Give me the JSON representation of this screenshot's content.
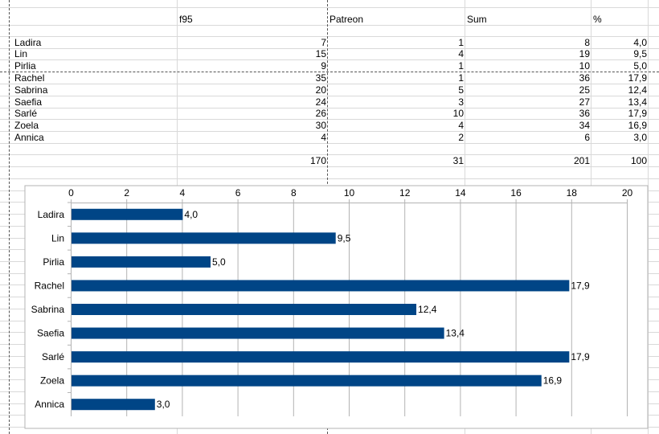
{
  "sheet": {
    "headers": [
      "f95",
      "Patreon",
      "Sum",
      "%"
    ],
    "rows": [
      {
        "name": "Ladira",
        "f95": "7",
        "patreon": "1",
        "sum": "8",
        "pct": "4,0"
      },
      {
        "name": "Lin",
        "f95": "15",
        "patreon": "4",
        "sum": "19",
        "pct": "9,5"
      },
      {
        "name": "Pirlia",
        "f95": "9",
        "patreon": "1",
        "sum": "10",
        "pct": "5,0"
      },
      {
        "name": "Rachel",
        "f95": "35",
        "patreon": "1",
        "sum": "36",
        "pct": "17,9"
      },
      {
        "name": "Sabrina",
        "f95": "20",
        "patreon": "5",
        "sum": "25",
        "pct": "12,4"
      },
      {
        "name": "Saefia",
        "f95": "24",
        "patreon": "3",
        "sum": "27",
        "pct": "13,4"
      },
      {
        "name": "Sarlé",
        "f95": "26",
        "patreon": "10",
        "sum": "36",
        "pct": "17,9"
      },
      {
        "name": "Zoela",
        "f95": "30",
        "patreon": "4",
        "sum": "34",
        "pct": "16,9"
      },
      {
        "name": "Annica",
        "f95": "4",
        "patreon": "2",
        "sum": "6",
        "pct": "3,0"
      }
    ],
    "totals": {
      "f95": "170",
      "patreon": "31",
      "sum": "201",
      "pct": "100"
    }
  },
  "chart_data": {
    "type": "bar",
    "orientation": "horizontal",
    "categories": [
      "Ladira",
      "Lin",
      "Pirlia",
      "Rachel",
      "Sabrina",
      "Saefia",
      "Sarlé",
      "Zoela",
      "Annica"
    ],
    "values": [
      4.0,
      9.5,
      5.0,
      17.9,
      12.4,
      13.4,
      17.9,
      16.9,
      3.0
    ],
    "data_labels": [
      "4,0",
      "9,5",
      "5,0",
      "17,9",
      "12,4",
      "13,4",
      "17,9",
      "16,9",
      "3,0"
    ],
    "xlim": [
      0,
      20
    ],
    "xticks": [
      0,
      2,
      4,
      6,
      8,
      10,
      12,
      14,
      16,
      18,
      20
    ],
    "x_axis_position": "top",
    "grid": true,
    "legend": "none",
    "bar_color": "#004586",
    "title": "",
    "xlabel": "",
    "ylabel": ""
  }
}
